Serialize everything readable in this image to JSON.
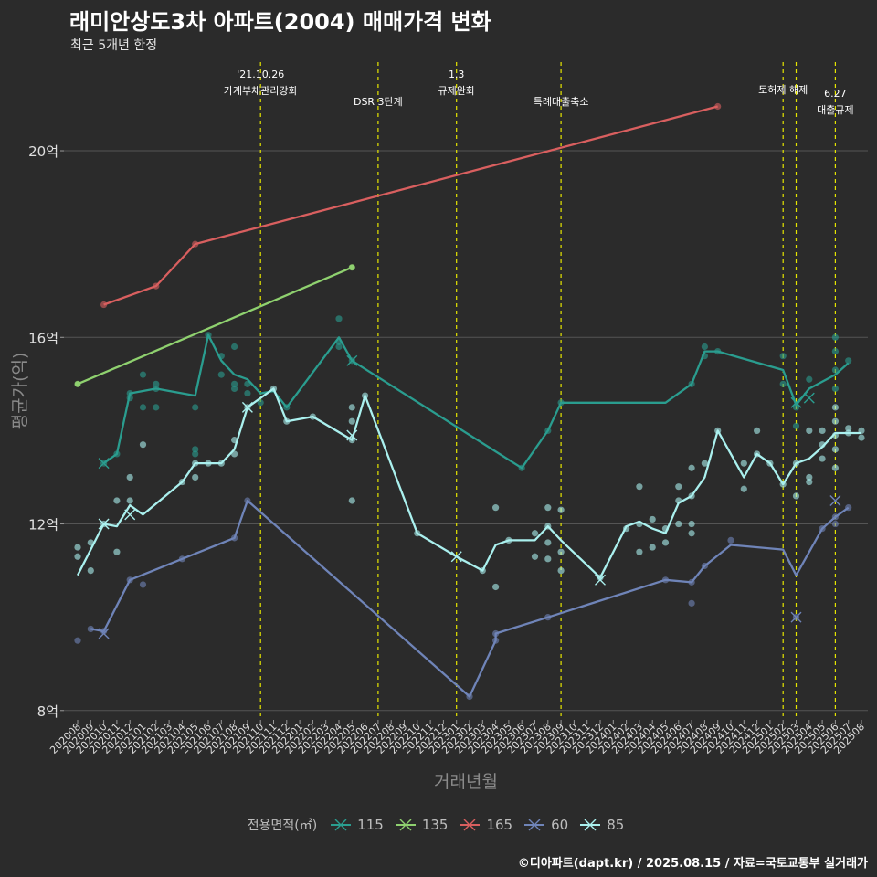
{
  "title": "래미안상도3차 아파트(2004) 매매가격 변화",
  "subtitle": "최근 5개년 한정",
  "caption": "©디아파트(dapt.kr) / 2025.08.15 / 자료=국토교통부 실거래가",
  "colors": {
    "background": "#2b2b2b",
    "grid": "#555555",
    "event_line": "#e6e600",
    "s115": "#2a9d8f",
    "s135": "#8fd16f",
    "s165": "#d95f5f",
    "s60": "#6f84b8",
    "s85": "#aaf0ee"
  },
  "chart_data": {
    "type": "line",
    "xlabel": "거래년월",
    "ylabel": "평균가(억)",
    "ylim": [
      7.8,
      21.9
    ],
    "yticks": [
      8,
      12,
      16,
      20
    ],
    "ytick_labels": [
      "8억",
      "12억",
      "16억",
      "20억"
    ],
    "grid": true,
    "legend_title": "전용면적(㎡)",
    "legend_position": "bottom",
    "months": [
      "202008",
      "202009",
      "202010",
      "202011",
      "202012",
      "202101",
      "202102",
      "202103",
      "202104",
      "202105",
      "202106",
      "202107",
      "202108",
      "202109",
      "202110",
      "202111",
      "202112",
      "202201",
      "202202",
      "202203",
      "202204",
      "202205",
      "202206",
      "202207",
      "202208",
      "202209",
      "202210",
      "202211",
      "202212",
      "202301",
      "202302",
      "202303",
      "202304",
      "202305",
      "202306",
      "202307",
      "202308",
      "202309",
      "202310",
      "202311",
      "202312",
      "202401",
      "202402",
      "202403",
      "202404",
      "202405",
      "202406",
      "202407",
      "202408",
      "202409",
      "202410",
      "202411",
      "202412",
      "202501",
      "202502",
      "202503",
      "202504",
      "202505",
      "202506",
      "202507",
      "202508"
    ],
    "events": [
      {
        "month": "202110",
        "label": "'21.10.26\n가계부채관리강화",
        "tier": "high"
      },
      {
        "month": "202207",
        "label": "DSR 3단계",
        "tier": "low"
      },
      {
        "month": "202301",
        "label": "1.3\n규제완화",
        "tier": "high"
      },
      {
        "month": "202309",
        "label": "특례대출축소",
        "tier": "low"
      },
      {
        "month": "202502",
        "label": "토허제 해제",
        "tier": "mid"
      },
      {
        "month": "202503",
        "label": "",
        "tier": "mid"
      },
      {
        "month": "202506",
        "label": "6.27\n대출규제",
        "tier": "low"
      }
    ],
    "series": [
      {
        "name": "115",
        "color": "#2a9d8f",
        "line": [
          [
            "202010",
            13.3
          ],
          [
            "202011",
            13.5
          ],
          [
            "202012",
            14.8
          ],
          [
            "202102",
            14.9
          ],
          [
            "202105",
            14.75
          ],
          [
            "202106",
            16.05
          ],
          [
            "202107",
            15.5
          ],
          [
            "202108",
            15.2
          ],
          [
            "202109",
            15.1
          ],
          [
            "202110",
            14.8
          ],
          [
            "202111",
            14.85
          ],
          [
            "202112",
            14.5
          ],
          [
            "202204",
            16.0
          ],
          [
            "202205",
            15.5
          ],
          [
            "202306",
            13.2
          ],
          [
            "202308",
            14.0
          ],
          [
            "202309",
            14.6
          ],
          [
            "202405",
            14.6
          ],
          [
            "202407",
            15.0
          ],
          [
            "202408",
            15.7
          ],
          [
            "202409",
            15.7
          ],
          [
            "202502",
            15.3
          ],
          [
            "202503",
            14.55
          ],
          [
            "202504",
            14.9
          ],
          [
            "202506",
            15.2
          ],
          [
            "202507",
            15.45
          ]
        ],
        "points": [
          [
            "202010",
            13.3
          ],
          [
            "202011",
            13.5
          ],
          [
            "202012",
            14.7
          ],
          [
            "202012",
            14.8
          ],
          [
            "202101",
            15.2
          ],
          [
            "202101",
            14.5
          ],
          [
            "202102",
            15.0
          ],
          [
            "202102",
            14.9
          ],
          [
            "202102",
            14.5
          ],
          [
            "202105",
            13.5
          ],
          [
            "202105",
            13.6
          ],
          [
            "202105",
            14.5
          ],
          [
            "202106",
            16.05
          ],
          [
            "202107",
            15.6
          ],
          [
            "202107",
            15.2
          ],
          [
            "202108",
            15.8
          ],
          [
            "202108",
            15.0
          ],
          [
            "202108",
            14.9
          ],
          [
            "202109",
            15.0
          ],
          [
            "202109",
            14.8
          ],
          [
            "202110",
            14.6
          ],
          [
            "202112",
            14.5
          ],
          [
            "202204",
            16.4
          ],
          [
            "202204",
            15.8
          ],
          [
            "202204",
            15.9
          ],
          [
            "202205",
            15.5
          ],
          [
            "202306",
            13.2
          ],
          [
            "202308",
            14.0
          ],
          [
            "202309",
            14.6
          ],
          [
            "202407",
            15.0
          ],
          [
            "202408",
            15.8
          ],
          [
            "202408",
            15.6
          ],
          [
            "202409",
            15.7
          ],
          [
            "202502",
            15.6
          ],
          [
            "202502",
            15.0
          ],
          [
            "202503",
            14.5
          ],
          [
            "202503",
            14.1
          ],
          [
            "202504",
            15.1
          ],
          [
            "202506",
            16.0
          ],
          [
            "202506",
            15.7
          ],
          [
            "202506",
            15.3
          ],
          [
            "202506",
            14.9
          ],
          [
            "202507",
            15.5
          ]
        ],
        "crosses": [
          [
            "202010",
            13.3
          ],
          [
            "202205",
            15.5
          ],
          [
            "202503",
            14.6
          ],
          [
            "202504",
            14.7
          ]
        ]
      },
      {
        "name": "135",
        "color": "#8fd16f",
        "line": [
          [
            "202008",
            15.0
          ],
          [
            "202205",
            17.5
          ]
        ],
        "points": [
          [
            "202008",
            15.0
          ],
          [
            "202205",
            17.5
          ]
        ],
        "crosses": []
      },
      {
        "name": "165",
        "color": "#d95f5f",
        "line": [
          [
            "202010",
            16.7
          ],
          [
            "202102",
            17.1
          ],
          [
            "202105",
            18.0
          ],
          [
            "202409",
            20.95
          ]
        ],
        "points": [
          [
            "202010",
            16.7
          ],
          [
            "202102",
            17.1
          ],
          [
            "202105",
            18.0
          ],
          [
            "202409",
            20.95
          ]
        ],
        "crosses": []
      },
      {
        "name": "60",
        "color": "#6f84b8",
        "line": [
          [
            "202009",
            9.75
          ],
          [
            "202010",
            9.7
          ],
          [
            "202012",
            10.8
          ],
          [
            "202104",
            11.25
          ],
          [
            "202108",
            11.7
          ],
          [
            "202109",
            12.5
          ],
          [
            "202302",
            8.3
          ],
          [
            "202304",
            9.5
          ],
          [
            "202304",
            9.65
          ],
          [
            "202308",
            10.0
          ],
          [
            "202405",
            10.8
          ],
          [
            "202407",
            10.75
          ],
          [
            "202408",
            11.1
          ],
          [
            "202410",
            11.55
          ],
          [
            "202502",
            11.45
          ],
          [
            "202503",
            10.9
          ],
          [
            "202505",
            11.9
          ],
          [
            "202506",
            12.15
          ],
          [
            "202507",
            12.35
          ]
        ],
        "points": [
          [
            "202008",
            9.5
          ],
          [
            "202009",
            9.75
          ],
          [
            "202010",
            9.7
          ],
          [
            "202012",
            10.8
          ],
          [
            "202101",
            10.7
          ],
          [
            "202104",
            11.25
          ],
          [
            "202108",
            11.7
          ],
          [
            "202109",
            12.5
          ],
          [
            "202302",
            8.3
          ],
          [
            "202304",
            9.5
          ],
          [
            "202304",
            9.65
          ],
          [
            "202308",
            10.0
          ],
          [
            "202405",
            10.8
          ],
          [
            "202407",
            10.75
          ],
          [
            "202407",
            10.3
          ],
          [
            "202408",
            11.1
          ],
          [
            "202410",
            11.65
          ],
          [
            "202503",
            10.0
          ],
          [
            "202505",
            11.9
          ],
          [
            "202506",
            12.15
          ],
          [
            "202506",
            12.0
          ],
          [
            "202507",
            12.35
          ]
        ],
        "crosses": [
          [
            "202010",
            9.65
          ],
          [
            "202503",
            10.0
          ],
          [
            "202506",
            12.5
          ]
        ]
      },
      {
        "name": "85",
        "color": "#aaf0ee",
        "line": [
          [
            "202008",
            10.9
          ],
          [
            "202009",
            11.45
          ],
          [
            "202010",
            12.0
          ],
          [
            "202011",
            11.95
          ],
          [
            "202012",
            12.4
          ],
          [
            "202101",
            12.2
          ],
          [
            "202104",
            12.9
          ],
          [
            "202105",
            13.3
          ],
          [
            "202106",
            13.3
          ],
          [
            "202107",
            13.3
          ],
          [
            "202108",
            13.6
          ],
          [
            "202109",
            14.5
          ],
          [
            "202111",
            14.9
          ],
          [
            "202112",
            14.2
          ],
          [
            "202202",
            14.3
          ],
          [
            "202205",
            13.8
          ],
          [
            "202206",
            14.75
          ],
          [
            "202210",
            11.8
          ],
          [
            "202301",
            11.3
          ],
          [
            "202303",
            11.0
          ],
          [
            "202304",
            11.55
          ],
          [
            "202305",
            11.65
          ],
          [
            "202307",
            11.65
          ],
          [
            "202308",
            11.95
          ],
          [
            "202309",
            11.65
          ],
          [
            "202312",
            10.85
          ],
          [
            "202402",
            11.95
          ],
          [
            "202403",
            12.05
          ],
          [
            "202404",
            11.9
          ],
          [
            "202405",
            11.8
          ],
          [
            "202406",
            12.45
          ],
          [
            "202407",
            12.6
          ],
          [
            "202408",
            13.0
          ],
          [
            "202409",
            14.0
          ],
          [
            "202410",
            13.5
          ],
          [
            "202411",
            13.0
          ],
          [
            "202412",
            13.5
          ],
          [
            "202501",
            13.3
          ],
          [
            "202502",
            12.85
          ],
          [
            "202503",
            13.3
          ],
          [
            "202504",
            13.4
          ],
          [
            "202505",
            13.65
          ],
          [
            "202506",
            13.95
          ],
          [
            "202507",
            13.95
          ],
          [
            "202508",
            13.95
          ]
        ],
        "points": [
          [
            "202008",
            11.5
          ],
          [
            "202008",
            11.3
          ],
          [
            "202009",
            11.6
          ],
          [
            "202009",
            11.0
          ],
          [
            "202010",
            12.0
          ],
          [
            "202011",
            12.5
          ],
          [
            "202011",
            11.4
          ],
          [
            "202012",
            12.5
          ],
          [
            "202012",
            13.0
          ],
          [
            "202101",
            13.7
          ],
          [
            "202104",
            12.9
          ],
          [
            "202105",
            13.0
          ],
          [
            "202105",
            13.3
          ],
          [
            "202106",
            13.3
          ],
          [
            "202107",
            13.3
          ],
          [
            "202108",
            13.5
          ],
          [
            "202108",
            13.8
          ],
          [
            "202109",
            14.5
          ],
          [
            "202111",
            14.9
          ],
          [
            "202112",
            14.2
          ],
          [
            "202202",
            14.3
          ],
          [
            "202205",
            14.5
          ],
          [
            "202205",
            14.2
          ],
          [
            "202205",
            12.5
          ],
          [
            "202205",
            13.8
          ],
          [
            "202206",
            14.75
          ],
          [
            "202210",
            11.8
          ],
          [
            "202303",
            11.0
          ],
          [
            "202304",
            10.65
          ],
          [
            "202304",
            12.35
          ],
          [
            "202305",
            11.65
          ],
          [
            "202307",
            11.3
          ],
          [
            "202307",
            11.8
          ],
          [
            "202308",
            12.35
          ],
          [
            "202308",
            11.95
          ],
          [
            "202308",
            11.6
          ],
          [
            "202308",
            11.25
          ],
          [
            "202309",
            12.3
          ],
          [
            "202309",
            11.4
          ],
          [
            "202309",
            11.0
          ],
          [
            "202312",
            10.85
          ],
          [
            "202402",
            11.9
          ],
          [
            "202403",
            11.4
          ],
          [
            "202403",
            12.0
          ],
          [
            "202403",
            12.8
          ],
          [
            "202404",
            11.5
          ],
          [
            "202404",
            12.1
          ],
          [
            "202405",
            11.6
          ],
          [
            "202405",
            11.9
          ],
          [
            "202406",
            12.5
          ],
          [
            "202406",
            12.0
          ],
          [
            "202406",
            12.8
          ],
          [
            "202407",
            12.6
          ],
          [
            "202407",
            13.2
          ],
          [
            "202407",
            11.8
          ],
          [
            "202407",
            12.0
          ],
          [
            "202408",
            13.3
          ],
          [
            "202409",
            14.0
          ],
          [
            "202411",
            13.3
          ],
          [
            "202411",
            12.75
          ],
          [
            "202412",
            14.0
          ],
          [
            "202412",
            13.5
          ],
          [
            "202501",
            13.3
          ],
          [
            "202502",
            12.85
          ],
          [
            "202503",
            13.3
          ],
          [
            "202503",
            12.6
          ],
          [
            "202504",
            13.0
          ],
          [
            "202504",
            12.9
          ],
          [
            "202504",
            14.0
          ],
          [
            "202505",
            13.7
          ],
          [
            "202505",
            14.0
          ],
          [
            "202505",
            13.4
          ],
          [
            "202506",
            14.2
          ],
          [
            "202506",
            13.9
          ],
          [
            "202506",
            13.6
          ],
          [
            "202506",
            14.5
          ],
          [
            "202506",
            13.2
          ],
          [
            "202507",
            13.95
          ],
          [
            "202507",
            14.05
          ],
          [
            "202508",
            14.0
          ],
          [
            "202508",
            13.85
          ]
        ],
        "crosses": [
          [
            "202010",
            12.0
          ],
          [
            "202012",
            12.2
          ],
          [
            "202109",
            14.5
          ],
          [
            "202205",
            13.9
          ],
          [
            "202301",
            11.3
          ],
          [
            "202312",
            10.8
          ]
        ]
      }
    ]
  }
}
